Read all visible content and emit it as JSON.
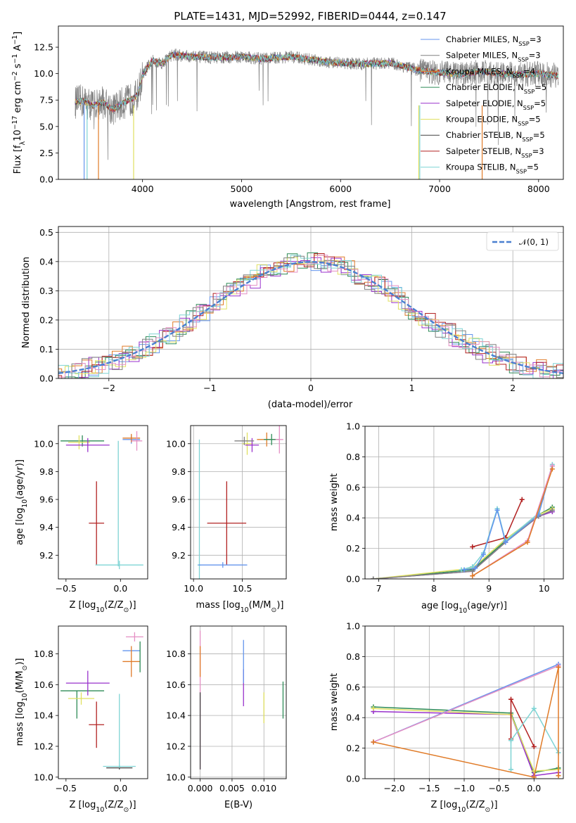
{
  "chart_data": [
    {
      "type": "line",
      "title": "PLATE=1431, MJD=52992, FIBERID=0444, z=0.147",
      "xlabel": "wavelength [Angstrom, rest frame]",
      "ylabel": "Flux [fλ10⁻¹⁷ erg cm⁻² s⁻¹ A⁻¹]",
      "xlim": [
        3150,
        8250
      ],
      "ylim": [
        0,
        14.5
      ],
      "xticks": [
        4000,
        5000,
        6000,
        7000,
        8000
      ],
      "yticks": [
        0.0,
        2.5,
        5.0,
        7.5,
        10.0,
        12.5
      ],
      "grid": false,
      "legend_position": "right",
      "series": [
        {
          "name": "Chabrier MILES, N_SSP=3",
          "color": "#6495ed"
        },
        {
          "name": "Salpeter MILES, N_SSP=3",
          "color": "#808080"
        },
        {
          "name": "Kroupa MILES, N_SSP=4",
          "color": "#e07b28"
        },
        {
          "name": "Chabrier ELODIE, N_SSP=5",
          "color": "#2e8b57"
        },
        {
          "name": "Salpeter ELODIE, N_SSP=5",
          "color": "#9932cc"
        },
        {
          "name": "Kroupa ELODIE, N_SSP=5",
          "color": "#e0e060"
        },
        {
          "name": "Chabrier STELIB, N_SSP=5",
          "color": "#404040"
        },
        {
          "name": "Salpeter STELIB, N_SSP=3",
          "color": "#b22222"
        },
        {
          "name": "Kroupa STELIB, N_SSP=5",
          "color": "#7fd4d4"
        }
      ],
      "spectrum_anchors": {
        "x": [
          3320,
          3400,
          3500,
          3600,
          3700,
          3800,
          3900,
          3950,
          4000,
          4050,
          4100,
          4200,
          4300,
          4500,
          4800,
          5000,
          5200,
          5500,
          5800,
          6000,
          6200,
          6500,
          6800,
          7000,
          7200,
          7400,
          7600,
          7800,
          8000,
          8200
        ],
        "y": [
          7.3,
          7.4,
          7.0,
          7.3,
          6.6,
          7.2,
          7.6,
          8.0,
          9.8,
          10.6,
          11.2,
          11.0,
          11.8,
          11.6,
          11.5,
          11.6,
          11.4,
          11.6,
          11.2,
          11.0,
          10.9,
          11.0,
          10.3,
          10.1,
          9.9,
          10.2,
          10.0,
          9.9,
          10.0,
          9.8
        ]
      }
    },
    {
      "type": "line",
      "xlabel": "(data-model)/error",
      "ylabel": "Normed distribution",
      "xlim": [
        -2.5,
        2.5
      ],
      "ylim": [
        0,
        0.52
      ],
      "xticks": [
        -2,
        -1,
        0,
        1,
        2
      ],
      "yticks": [
        0.0,
        0.1,
        0.2,
        0.3,
        0.4,
        0.5
      ],
      "grid": true,
      "legend_position": "top-right",
      "legend": [
        "𝒩(0, 1)"
      ],
      "gaussian": {
        "mean": 0,
        "sigma": 1
      },
      "histogram_colors": [
        "#6495ed",
        "#e07b28",
        "#2e8b57",
        "#9932cc",
        "#b22222",
        "#e0e060",
        "#7fd4d4",
        "#808080",
        "#e58fc4"
      ]
    },
    {
      "type": "scatter",
      "xlabel": "Z [log10(Z/Z⊙)]",
      "ylabel": "age  [log10(age/yr)]",
      "xlim": [
        -0.57,
        0.25
      ],
      "ylim": [
        9.03,
        10.13
      ],
      "xticks": [
        -0.5,
        0.0
      ],
      "yticks": [
        9.2,
        9.4,
        9.6,
        9.8,
        10.0
      ],
      "grid": false,
      "points": [
        {
          "x": -0.22,
          "y": 9.43,
          "xerr": 0.07,
          "yerr": 0.3,
          "color": "#b22222"
        },
        {
          "x": -0.01,
          "y": 9.13,
          "xerr": 0.22,
          "yerr": 0.03,
          "color": "#7fd4d4"
        },
        {
          "x": -0.02,
          "y": 9.57,
          "xerr": 0.0,
          "yerr": 0.45,
          "color": "#7fd4d4"
        },
        {
          "x": -0.35,
          "y": 10.02,
          "xerr": 0.2,
          "yerr": 0.04,
          "color": "#2e8b57"
        },
        {
          "x": -0.38,
          "y": 10.01,
          "xerr": 0.1,
          "yerr": 0.05,
          "color": "#e0e060"
        },
        {
          "x": -0.3,
          "y": 9.99,
          "xerr": 0.2,
          "yerr": 0.05,
          "color": "#9932cc"
        },
        {
          "x": 0.1,
          "y": 10.03,
          "xerr": 0.08,
          "yerr": 0.03,
          "color": "#6495ed"
        },
        {
          "x": 0.1,
          "y": 10.04,
          "xerr": 0.08,
          "yerr": 0.03,
          "color": "#e07b28"
        },
        {
          "x": 0.15,
          "y": 10.02,
          "xerr": 0.05,
          "yerr": 0.07,
          "color": "#e58fc4"
        }
      ]
    },
    {
      "type": "scatter",
      "xlabel": "mass [log10(M/M⊙)]",
      "ylabel": "",
      "xlim": [
        9.97,
        10.95
      ],
      "ylim": [
        9.03,
        10.13
      ],
      "xticks": [
        10.0,
        10.5
      ],
      "yticks": [
        9.2,
        9.4,
        9.6,
        9.8,
        10.0
      ],
      "grid": true,
      "points": [
        {
          "x": 10.34,
          "y": 9.43,
          "xerr": 0.2,
          "yerr": 0.3,
          "color": "#b22222"
        },
        {
          "x": 10.06,
          "y": 9.13,
          "xerr": 0.02,
          "yerr": 0.9,
          "color": "#7fd4d4"
        },
        {
          "x": 10.3,
          "y": 9.13,
          "xerr": 0.25,
          "yerr": 0.02,
          "color": "#6495ed"
        },
        {
          "x": 10.55,
          "y": 10.0,
          "xerr": 0.05,
          "yerr": 0.08,
          "color": "#e0e060"
        },
        {
          "x": 10.6,
          "y": 9.99,
          "xerr": 0.07,
          "yerr": 0.05,
          "color": "#9932cc"
        },
        {
          "x": 10.75,
          "y": 10.03,
          "xerr": 0.1,
          "yerr": 0.05,
          "color": "#e07b28"
        },
        {
          "x": 10.8,
          "y": 10.03,
          "xerr": 0.08,
          "yerr": 0.04,
          "color": "#2e8b57"
        },
        {
          "x": 10.88,
          "y": 10.03,
          "xerr": 0.04,
          "yerr": 0.1,
          "color": "#e58fc4"
        },
        {
          "x": 10.52,
          "y": 10.02,
          "xerr": 0.1,
          "yerr": 0.03,
          "color": "#808080"
        }
      ]
    },
    {
      "type": "line",
      "xlabel": "age  [log10(age/yr)]",
      "ylabel": "mass weight",
      "xlim": [
        6.75,
        10.35
      ],
      "ylim": [
        0.0,
        1.0
      ],
      "xticks": [
        7,
        8,
        9,
        10
      ],
      "yticks": [
        0.0,
        0.2,
        0.4,
        0.6,
        0.8,
        1.0
      ],
      "grid": true,
      "series": [
        {
          "color": "#2e8b57",
          "x": [
            6.9,
            8.7,
            9.3,
            9.9,
            10.15
          ],
          "y": [
            0.0,
            0.06,
            0.25,
            0.42,
            0.47
          ]
        },
        {
          "color": "#9932cc",
          "x": [
            6.9,
            8.7,
            9.3,
            9.9,
            10.15
          ],
          "y": [
            0.0,
            0.05,
            0.24,
            0.41,
            0.44
          ]
        },
        {
          "color": "#e0e060",
          "x": [
            6.9,
            8.7,
            9.3,
            9.9,
            10.15
          ],
          "y": [
            0.0,
            0.07,
            0.26,
            0.42,
            0.46
          ]
        },
        {
          "color": "#808080",
          "x": [
            6.9,
            8.7,
            9.3,
            9.9,
            10.15
          ],
          "y": [
            0.0,
            0.05,
            0.24,
            0.41,
            0.45
          ]
        },
        {
          "color": "#b22222",
          "x": [
            8.7,
            9.3,
            9.6
          ],
          "y": [
            0.21,
            0.27,
            0.52
          ]
        },
        {
          "color": "#7fd4d4",
          "x": [
            8.5,
            8.7,
            8.9,
            9.15,
            9.3,
            9.9,
            10.15
          ],
          "y": [
            0.06,
            0.08,
            0.17,
            0.46,
            0.25,
            0.43,
            0.75
          ]
        },
        {
          "color": "#6495ed",
          "x": [
            8.55,
            8.75,
            8.9,
            9.15,
            9.3,
            9.9,
            10.15
          ],
          "y": [
            0.06,
            0.07,
            0.16,
            0.45,
            0.24,
            0.42,
            0.74
          ]
        },
        {
          "color": "#e58fc4",
          "x": [
            8.7,
            9.7,
            10.15
          ],
          "y": [
            0.02,
            0.25,
            0.74
          ]
        },
        {
          "color": "#e07b28",
          "x": [
            8.7,
            9.7,
            10.15
          ],
          "y": [
            0.02,
            0.24,
            0.72
          ]
        }
      ]
    },
    {
      "type": "scatter",
      "xlabel": "Z [log10(Z/Z⊙)]",
      "ylabel": "mass [log10(M/M⊙)]",
      "xlim": [
        -0.57,
        0.25
      ],
      "ylim": [
        9.99,
        10.98
      ],
      "xticks": [
        -0.5,
        0.0
      ],
      "yticks": [
        10.0,
        10.2,
        10.4,
        10.6,
        10.8
      ],
      "grid": false,
      "points": [
        {
          "x": -0.22,
          "y": 10.34,
          "xerr": 0.07,
          "yerr": 0.15,
          "color": "#b22222"
        },
        {
          "x": -0.01,
          "y": 10.07,
          "xerr": 0.15,
          "yerr": 0.01,
          "color": "#7fd4d4"
        },
        {
          "x": -0.01,
          "y": 10.06,
          "xerr": 0.12,
          "yerr": 0.01,
          "color": "#404040"
        },
        {
          "x": -0.01,
          "y": 10.3,
          "xerr": 0.0,
          "yerr": 0.24,
          "color": "#7fd4d4"
        },
        {
          "x": -0.35,
          "y": 10.56,
          "xerr": 0.2,
          "yerr": 0.0,
          "color": "#2e8b57"
        },
        {
          "x": -0.4,
          "y": 10.47,
          "xerr": 0.0,
          "yerr": 0.09,
          "color": "#2e8b57"
        },
        {
          "x": -0.36,
          "y": 10.51,
          "xerr": 0.12,
          "yerr": 0.04,
          "color": "#e0e060"
        },
        {
          "x": -0.3,
          "y": 10.61,
          "xerr": 0.2,
          "yerr": 0.08,
          "color": "#9932cc"
        },
        {
          "x": 0.1,
          "y": 10.82,
          "xerr": 0.08,
          "yerr": 0.0,
          "color": "#6495ed"
        },
        {
          "x": 0.1,
          "y": 10.75,
          "xerr": 0.08,
          "yerr": 0.1,
          "color": "#e07b28"
        },
        {
          "x": 0.13,
          "y": 10.91,
          "xerr": 0.08,
          "yerr": 0.03,
          "color": "#e58fc4"
        },
        {
          "x": 0.18,
          "y": 10.78,
          "xerr": 0.0,
          "yerr": 0.1,
          "color": "#2e8b57"
        }
      ]
    },
    {
      "type": "scatter",
      "xlabel": "E(B-V)",
      "ylabel": "",
      "xlim": [
        -0.0015,
        0.0135
      ],
      "ylim": [
        9.99,
        10.98
      ],
      "xticks": [
        0.0,
        0.005,
        0.01
      ],
      "yticks": [
        10.0,
        10.2,
        10.4,
        10.6,
        10.8
      ],
      "grid": true,
      "points": [
        {
          "x": 0.0,
          "y": 10.5,
          "xerr": 0.0,
          "yerr": 0.45,
          "color": "#e58fc4"
        },
        {
          "x": 0.0,
          "y": 10.3,
          "xerr": 0.0,
          "yerr": 0.25,
          "color": "#404040"
        },
        {
          "x": 0.0,
          "y": 10.75,
          "xerr": 0.0,
          "yerr": 0.1,
          "color": "#e07b28"
        },
        {
          "x": 0.0068,
          "y": 10.58,
          "xerr": 0.0,
          "yerr": 0.12,
          "color": "#9932cc"
        },
        {
          "x": 0.0068,
          "y": 10.75,
          "xerr": 0.0,
          "yerr": 0.14,
          "color": "#6495ed"
        },
        {
          "x": 0.01,
          "y": 10.45,
          "xerr": 0.0,
          "yerr": 0.1,
          "color": "#e0e060"
        },
        {
          "x": 0.013,
          "y": 10.5,
          "xerr": 0.0,
          "yerr": 0.12,
          "color": "#2e8b57"
        }
      ]
    },
    {
      "type": "line",
      "xlabel": "Z [log10(Z/Z⊙)]",
      "ylabel": "mass weight",
      "xlim": [
        -2.42,
        0.42
      ],
      "ylim": [
        0.0,
        1.0
      ],
      "xticks": [
        -2.0,
        -1.5,
        -1.0,
        -0.5,
        0.0
      ],
      "yticks": [
        0.0,
        0.2,
        0.4,
        0.6,
        0.8,
        1.0
      ],
      "grid": true,
      "series": [
        {
          "color": "#2e8b57",
          "x": [
            -2.3,
            -0.33,
            0.0,
            0.35
          ],
          "y": [
            0.47,
            0.43,
            0.04,
            0.07
          ]
        },
        {
          "color": "#9932cc",
          "x": [
            -2.3,
            -0.33,
            0.0,
            0.35
          ],
          "y": [
            0.44,
            0.42,
            0.02,
            0.04
          ]
        },
        {
          "color": "#e0e060",
          "x": [
            -2.3,
            -0.33,
            0.0,
            0.35
          ],
          "y": [
            0.46,
            0.42,
            0.05,
            0.06
          ]
        },
        {
          "color": "#b22222",
          "x": [
            -0.33,
            -0.33,
            0.0
          ],
          "y": [
            0.26,
            0.52,
            0.21
          ]
        },
        {
          "color": "#7fd4d4",
          "x": [
            -0.33,
            -0.33,
            0.0,
            0.35
          ],
          "y": [
            0.06,
            0.25,
            0.46,
            0.17
          ]
        },
        {
          "color": "#6495ed",
          "x": [
            -2.3,
            0.35
          ],
          "y": [
            0.24,
            0.75
          ]
        },
        {
          "color": "#e58fc4",
          "x": [
            -2.3,
            0.35
          ],
          "y": [
            0.24,
            0.74
          ]
        },
        {
          "color": "#e07b28",
          "x": [
            -2.3,
            0.0,
            0.35,
            0.35
          ],
          "y": [
            0.24,
            0.01,
            0.73,
            0.02
          ]
        }
      ]
    }
  ]
}
